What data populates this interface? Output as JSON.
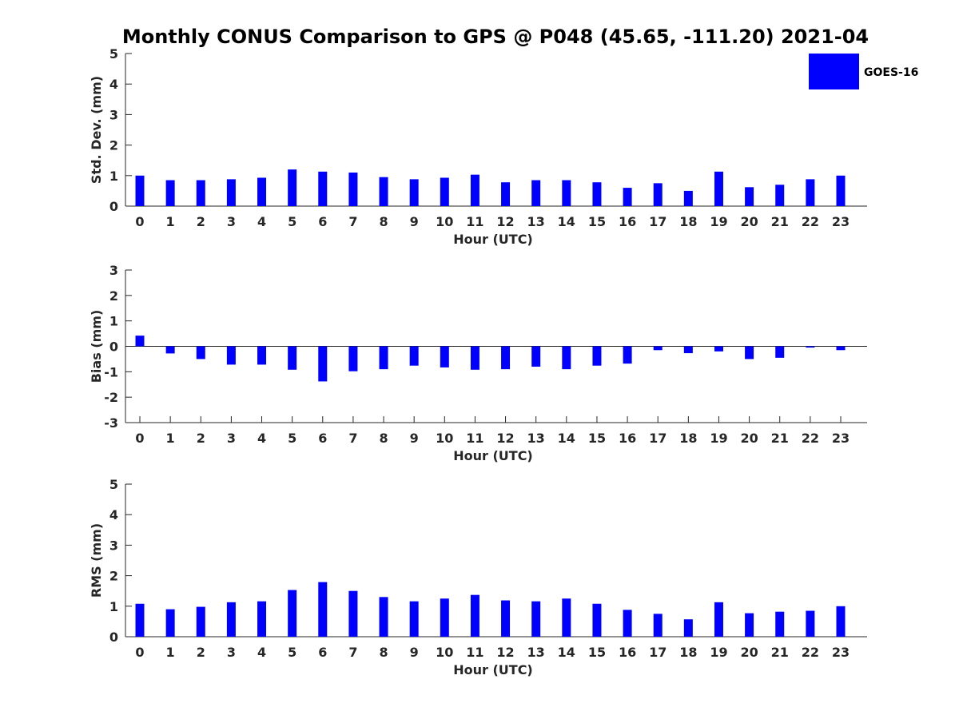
{
  "title": "Monthly CONUS Comparison to GPS @ P048 (45.65, -111.20) 2021-04",
  "colors": {
    "bar": "#0000ff",
    "axis": "#262626",
    "background": "#ffffff"
  },
  "legend": {
    "label": "GOES-16",
    "placement": "top-right"
  },
  "chart_data": [
    {
      "type": "bar",
      "xlabel": "Hour (UTC)",
      "ylabel": "Std. Dev. (mm)",
      "ylim": [
        0,
        5
      ],
      "yticks": [
        0,
        1,
        2,
        3,
        4,
        5
      ],
      "categories": [
        "0",
        "1",
        "2",
        "3",
        "4",
        "5",
        "6",
        "7",
        "8",
        "9",
        "10",
        "11",
        "12",
        "13",
        "14",
        "15",
        "16",
        "17",
        "18",
        "19",
        "20",
        "21",
        "22",
        "23"
      ],
      "series": [
        {
          "name": "GOES-16",
          "values": [
            1.0,
            0.85,
            0.85,
            0.88,
            0.93,
            1.2,
            1.13,
            1.1,
            0.95,
            0.88,
            0.93,
            1.03,
            0.78,
            0.85,
            0.85,
            0.78,
            0.6,
            0.75,
            0.5,
            1.13,
            0.62,
            0.7,
            0.88,
            1.0
          ]
        }
      ]
    },
    {
      "type": "bar",
      "xlabel": "Hour (UTC)",
      "ylabel": "Bias (mm)",
      "ylim": [
        -3,
        3
      ],
      "yticks": [
        -3,
        -2,
        -1,
        0,
        1,
        2,
        3
      ],
      "categories": [
        "0",
        "1",
        "2",
        "3",
        "4",
        "5",
        "6",
        "7",
        "8",
        "9",
        "10",
        "11",
        "12",
        "13",
        "14",
        "15",
        "16",
        "17",
        "18",
        "19",
        "20",
        "21",
        "22",
        "23"
      ],
      "series": [
        {
          "name": "GOES-16",
          "values": [
            0.42,
            -0.28,
            -0.5,
            -0.72,
            -0.72,
            -0.92,
            -1.38,
            -0.98,
            -0.9,
            -0.76,
            -0.83,
            -0.92,
            -0.9,
            -0.8,
            -0.9,
            -0.76,
            -0.68,
            -0.15,
            -0.27,
            -0.2,
            -0.5,
            -0.45,
            -0.05,
            -0.15
          ]
        }
      ]
    },
    {
      "type": "bar",
      "xlabel": "Hour (UTC)",
      "ylabel": "RMS (mm)",
      "ylim": [
        0,
        5
      ],
      "yticks": [
        0,
        1,
        2,
        3,
        4,
        5
      ],
      "categories": [
        "0",
        "1",
        "2",
        "3",
        "4",
        "5",
        "6",
        "7",
        "8",
        "9",
        "10",
        "11",
        "12",
        "13",
        "14",
        "15",
        "16",
        "17",
        "18",
        "19",
        "20",
        "21",
        "22",
        "23"
      ],
      "series": [
        {
          "name": "GOES-16",
          "values": [
            1.08,
            0.9,
            0.98,
            1.13,
            1.16,
            1.53,
            1.79,
            1.5,
            1.3,
            1.16,
            1.25,
            1.37,
            1.19,
            1.16,
            1.25,
            1.08,
            0.88,
            0.75,
            0.57,
            1.13,
            0.77,
            0.82,
            0.85,
            1.0
          ]
        }
      ]
    }
  ]
}
